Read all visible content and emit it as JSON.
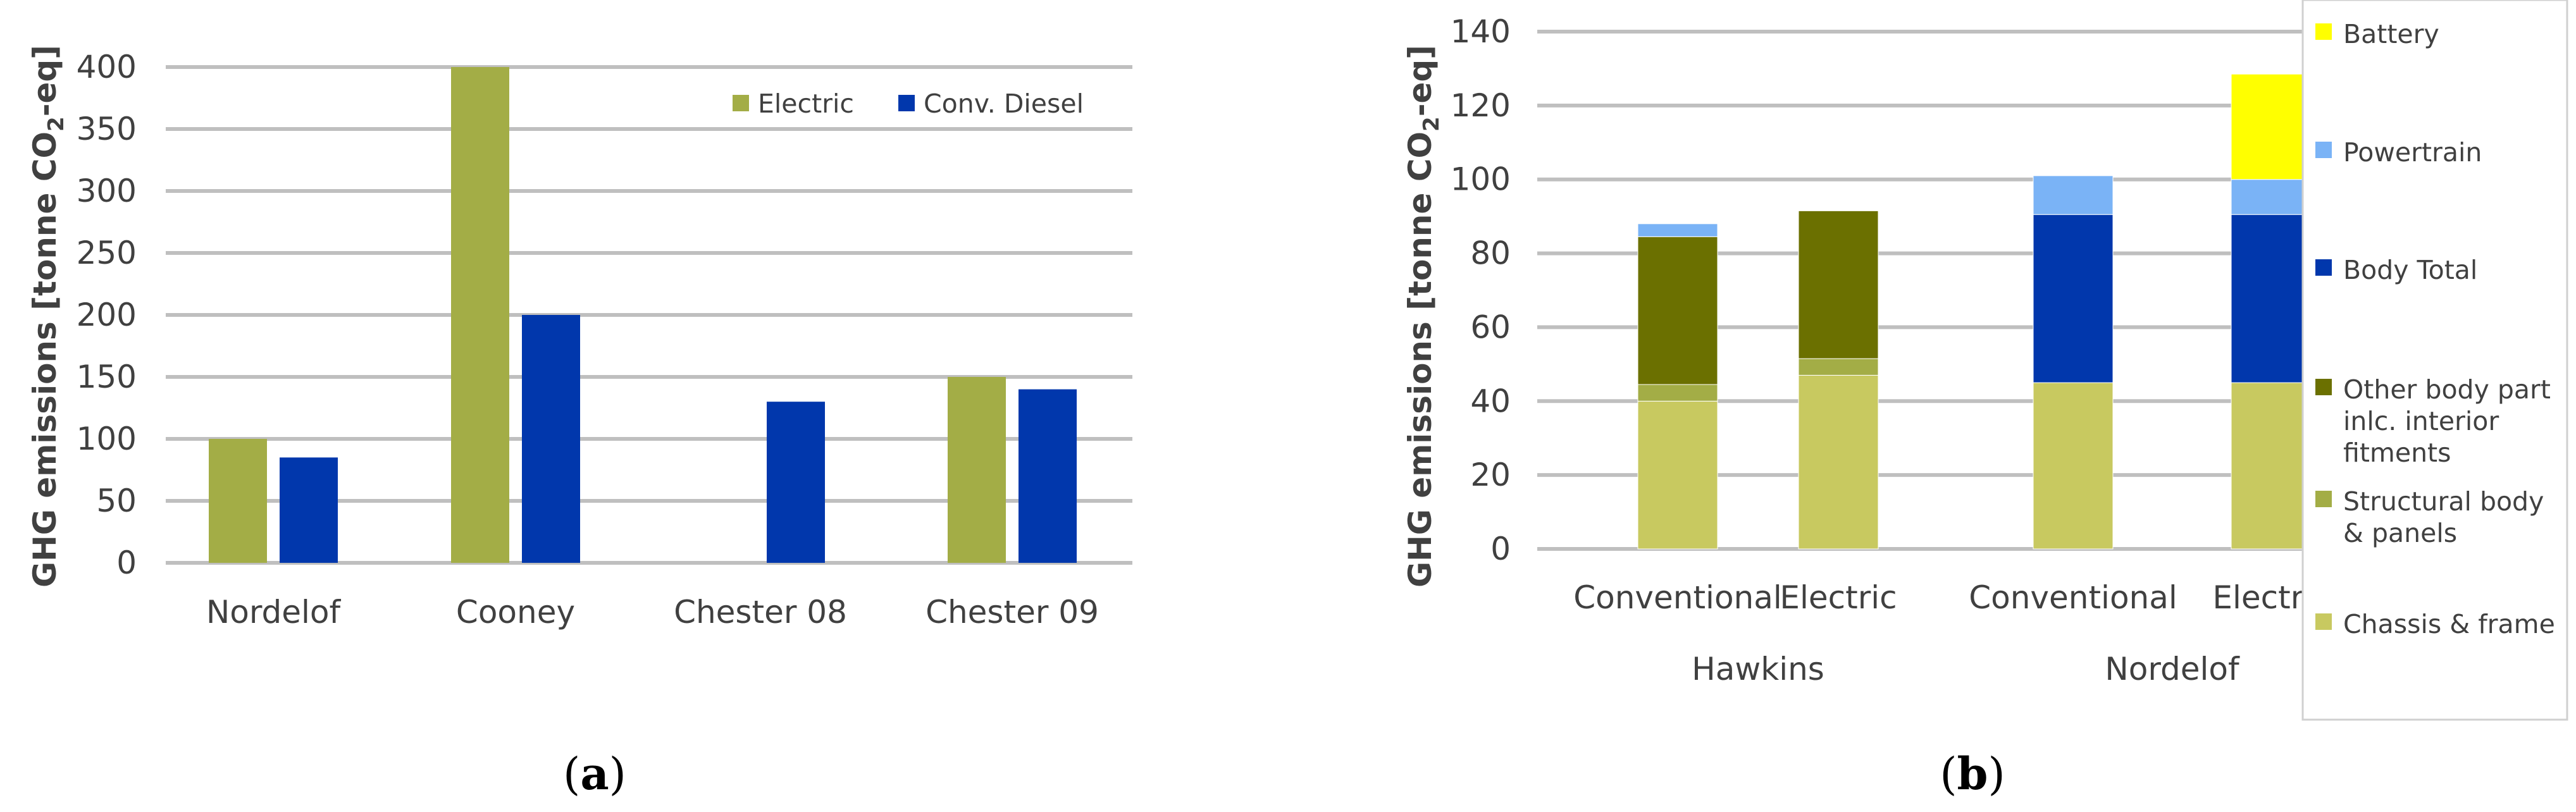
{
  "chart_data": [
    {
      "id": "a",
      "type": "bar",
      "caption": "(a)",
      "title": "",
      "ylabel": "GHG emissions [tonne CO2-eq]",
      "xlabel": "",
      "ylim": [
        0,
        400
      ],
      "yticks": [
        0,
        50,
        100,
        150,
        200,
        250,
        300,
        350,
        400
      ],
      "grid": true,
      "legend_position": "top-right",
      "categories": [
        "Nordelof",
        "Cooney",
        "Chester 08",
        "Chester 09"
      ],
      "series": [
        {
          "name": "Electric",
          "color": "#a3ad46",
          "values": [
            100,
            400,
            null,
            150
          ]
        },
        {
          "name": "Conv. Diesel",
          "color": "#0137ac",
          "values": [
            85,
            200,
            130,
            140
          ]
        }
      ]
    },
    {
      "id": "b",
      "type": "bar",
      "stacked": true,
      "caption": "(b)",
      "title": "",
      "ylabel": "GHG emissions [tonne CO2-eq]",
      "xlabel": "",
      "ylim": [
        0,
        140
      ],
      "yticks": [
        0,
        20,
        40,
        60,
        80,
        100,
        120,
        140
      ],
      "grid": true,
      "legend_position": "right",
      "categories": [
        "Conventional",
        "Electric",
        "Conventional",
        "Electric"
      ],
      "groups": [
        {
          "label": "Hawkins",
          "span": [
            0,
            1
          ]
        },
        {
          "label": "Nordelof",
          "span": [
            2,
            3
          ]
        }
      ],
      "series": [
        {
          "name": "Chassis & frame",
          "color": "#c8c960",
          "values": [
            40,
            47,
            45,
            45
          ]
        },
        {
          "name": "Structural body & panels",
          "color": "#a3ad46",
          "values": [
            4.5,
            4.5,
            0,
            0
          ]
        },
        {
          "name": "Other body part inlc. interior fitments",
          "color": "#6b7000",
          "values": [
            40,
            40,
            0,
            0
          ]
        },
        {
          "name": "Body Total",
          "color": "#0137ac",
          "values": [
            0,
            0,
            45.5,
            45.5
          ]
        },
        {
          "name": "Powertrain",
          "color": "#7ab3f6",
          "values": [
            3.5,
            0,
            10.5,
            9.5
          ]
        },
        {
          "name": "Battery",
          "color": "#ffff00",
          "values": [
            0,
            0,
            0,
            28.5
          ]
        }
      ],
      "legend_order": [
        "Battery",
        "Powertrain",
        "Body Total",
        "Other body part inlc. interior fitments",
        "Structural body & panels",
        "Chassis & frame"
      ]
    }
  ]
}
